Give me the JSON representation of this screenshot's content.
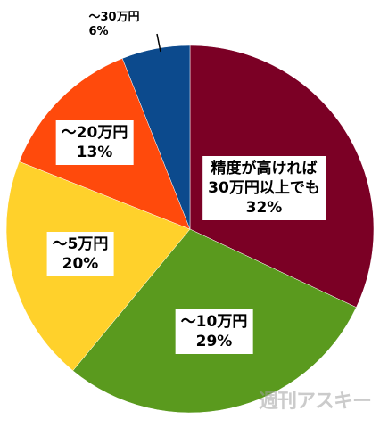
{
  "chart_data": {
    "type": "pie",
    "categories": [
      "精度が高ければ\n30万円以上でも",
      "～10万円",
      "～5万円",
      "～20万円",
      "～30万円"
    ],
    "values": [
      32,
      29,
      20,
      13,
      6
    ],
    "value_labels": [
      "32%",
      "29%",
      "20%",
      "13%",
      "6%"
    ],
    "colors": [
      "#7b0025",
      "#5a9a1e",
      "#ffd12b",
      "#ff4a0c",
      "#0c4a8d"
    ]
  },
  "watermark": "週刊アスキー"
}
